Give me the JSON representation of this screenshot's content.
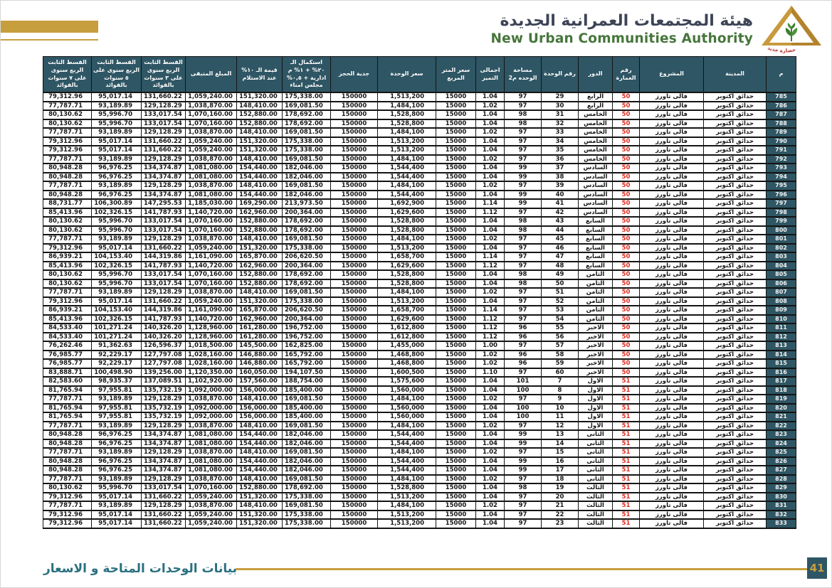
{
  "header": {
    "title_ar": "هيئة المجتمعات العمرانية الجديدة",
    "title_en": "New Urban Communities Authority",
    "logo": "nuca-gold-pyramid-logo"
  },
  "footer": {
    "label": "بيانات الوحدات المتاحة و الاسعار",
    "page_number": "41"
  },
  "colors": {
    "header_teal": "#2f5664",
    "gold": "#c79e3e",
    "building_red": "#e02b20",
    "footer_teal": "#2a7080",
    "title_green": "#46763b"
  },
  "table": {
    "columns": [
      "م",
      "المدينة",
      "المشروع",
      "رقم العمارة",
      "الدور",
      "رقم الوحدة",
      "مساحة الوحده م2",
      "اجمالى التميز",
      "سعر المتر المربع",
      "سعر الوحدة",
      "جدية الحجز",
      "استكمال الـ ٢٠% + ١% م ادارية + ٠,٥% مجلس امناء",
      "قيمة الـ ١٠% عند الاستلام",
      "المبلغ المتبقى",
      "القسط الثابت الربع سنوى على ٣ سنوات بالفوائد",
      "القسط الثابت الربع سنوى على ٥ سنوات بالفوائد",
      "القسط الثابت الربع سنوى على ٧ سنوات بالفوائد"
    ],
    "column_keys": [
      "serial",
      "city",
      "project",
      "building-number",
      "floor",
      "unit-number",
      "unit-area",
      "premium-factor",
      "meter-price",
      "unit-price",
      "booking-deposit",
      "completion-20pct-payment",
      "delivery-10pct-payment",
      "remaining-amount",
      "installment-3years",
      "installment-5years",
      "installment-7years"
    ],
    "rows": [
      [
        "785",
        "حدائق اكتوبر",
        "فالى تاورز",
        "50",
        "الرابع",
        "29",
        "97",
        "1.04",
        "15000",
        "1,513,200",
        "150000",
        "175,338.00",
        "151,320.00",
        "1,059,240.00",
        "131,660.22",
        "95,017.14",
        "79,312.96"
      ],
      [
        "786",
        "حدائق اكتوبر",
        "فالى تاورز",
        "50",
        "الرابع",
        "30",
        "97",
        "1.02",
        "15000",
        "1,484,100",
        "150000",
        "169,081.50",
        "148,410.00",
        "1,038,870.00",
        "129,128.29",
        "93,189.89",
        "77,787.71"
      ],
      [
        "787",
        "حدائق اكتوبر",
        "فالى تاورز",
        "50",
        "الخامس",
        "31",
        "98",
        "1.04",
        "15000",
        "1,528,800",
        "150000",
        "178,692.00",
        "152,880.00",
        "1,070,160.00",
        "133,017.54",
        "95,996.70",
        "80,130.62"
      ],
      [
        "788",
        "حدائق اكتوبر",
        "فالى تاورز",
        "50",
        "الخامس",
        "32",
        "98",
        "1.04",
        "15000",
        "1,528,800",
        "150000",
        "178,692.00",
        "152,880.00",
        "1,070,160.00",
        "133,017.54",
        "95,996.70",
        "80,130.62"
      ],
      [
        "789",
        "حدائق اكتوبر",
        "فالى تاورز",
        "50",
        "الخامس",
        "33",
        "97",
        "1.02",
        "15000",
        "1,484,100",
        "150000",
        "169,081.50",
        "148,410.00",
        "1,038,870.00",
        "129,128.29",
        "93,189.89",
        "77,787.71"
      ],
      [
        "790",
        "حدائق اكتوبر",
        "فالى تاورز",
        "50",
        "الخامس",
        "34",
        "97",
        "1.04",
        "15000",
        "1,513,200",
        "150000",
        "175,338.00",
        "151,320.00",
        "1,059,240.00",
        "131,660.22",
        "95,017.14",
        "79,312.96"
      ],
      [
        "791",
        "حدائق اكتوبر",
        "فالى تاورز",
        "50",
        "الخامس",
        "35",
        "97",
        "1.04",
        "15000",
        "1,513,200",
        "150000",
        "175,338.00",
        "151,320.00",
        "1,059,240.00",
        "131,660.22",
        "95,017.14",
        "79,312.96"
      ],
      [
        "792",
        "حدائق اكتوبر",
        "فالى تاورز",
        "50",
        "الخامس",
        "36",
        "97",
        "1.02",
        "15000",
        "1,484,100",
        "150000",
        "169,081.50",
        "148,410.00",
        "1,038,870.00",
        "129,128.29",
        "93,189.89",
        "77,787.71"
      ],
      [
        "793",
        "حدائق اكتوبر",
        "فالى تاورز",
        "50",
        "السادس",
        "37",
        "99",
        "1.04",
        "15000",
        "1,544,400",
        "150000",
        "182,046.00",
        "154,440.00",
        "1,081,080.00",
        "134,374.87",
        "96,976.25",
        "80,948.28"
      ],
      [
        "794",
        "حدائق اكتوبر",
        "فالى تاورز",
        "50",
        "السادس",
        "38",
        "99",
        "1.04",
        "15000",
        "1,544,400",
        "150000",
        "182,046.00",
        "154,440.00",
        "1,081,080.00",
        "134,374.87",
        "96,976.25",
        "80,948.28"
      ],
      [
        "795",
        "حدائق اكتوبر",
        "فالى تاورز",
        "50",
        "السادس",
        "39",
        "97",
        "1.02",
        "15000",
        "1,484,100",
        "150000",
        "169,081.50",
        "148,410.00",
        "1,038,870.00",
        "129,128.29",
        "93,189.89",
        "77,787.71"
      ],
      [
        "796",
        "حدائق اكتوبر",
        "فالى تاورز",
        "50",
        "السادس",
        "40",
        "99",
        "1.04",
        "15000",
        "1,544,400",
        "150000",
        "182,046.00",
        "154,440.00",
        "1,081,080.00",
        "134,374.87",
        "96,976.25",
        "80,948.28"
      ],
      [
        "797",
        "حدائق اكتوبر",
        "فالى تاورز",
        "50",
        "السادس",
        "41",
        "99",
        "1.14",
        "15000",
        "1,692,900",
        "150000",
        "213,973.50",
        "169,290.00",
        "1,185,030.00",
        "147,295.53",
        "106,300.89",
        "88,731.77"
      ],
      [
        "798",
        "حدائق اكتوبر",
        "فالى تاورز",
        "50",
        "السادس",
        "42",
        "97",
        "1.12",
        "15000",
        "1,629,600",
        "150000",
        "200,364.00",
        "162,960.00",
        "1,140,720.00",
        "141,787.93",
        "102,326.15",
        "85,413.96"
      ],
      [
        "799",
        "حدائق اكتوبر",
        "فالى تاورز",
        "50",
        "السابع",
        "43",
        "98",
        "1.04",
        "15000",
        "1,528,800",
        "150000",
        "178,692.00",
        "152,880.00",
        "1,070,160.00",
        "133,017.54",
        "95,996.70",
        "80,130.62"
      ],
      [
        "800",
        "حدائق اكتوبر",
        "فالى تاورز",
        "50",
        "السابع",
        "44",
        "98",
        "1.04",
        "15000",
        "1,528,800",
        "150000",
        "178,692.00",
        "152,880.00",
        "1,070,160.00",
        "133,017.54",
        "95,996.70",
        "80,130.62"
      ],
      [
        "801",
        "حدائق اكتوبر",
        "فالى تاورز",
        "50",
        "السابع",
        "45",
        "97",
        "1.02",
        "15000",
        "1,484,100",
        "150000",
        "169,081.50",
        "148,410.00",
        "1,038,870.00",
        "129,128.29",
        "93,189.89",
        "77,787.71"
      ],
      [
        "802",
        "حدائق اكتوبر",
        "فالى تاورز",
        "50",
        "السابع",
        "46",
        "97",
        "1.04",
        "15000",
        "1,513,200",
        "150000",
        "175,338.00",
        "151,320.00",
        "1,059,240.00",
        "131,660.22",
        "95,017.14",
        "79,312.96"
      ],
      [
        "803",
        "حدائق اكتوبر",
        "فالى تاورز",
        "50",
        "السابع",
        "47",
        "97",
        "1.14",
        "15000",
        "1,658,700",
        "150000",
        "206,620.50",
        "165,870.00",
        "1,161,090.00",
        "144,319.86",
        "104,153.40",
        "86,939.21"
      ],
      [
        "804",
        "حدائق اكتوبر",
        "فالى تاورز",
        "50",
        "السابع",
        "48",
        "97",
        "1.12",
        "15000",
        "1,629,600",
        "150000",
        "200,364.00",
        "162,960.00",
        "1,140,720.00",
        "141,787.93",
        "102,326.15",
        "85,413.96"
      ],
      [
        "805",
        "حدائق اكتوبر",
        "فالى تاورز",
        "50",
        "الثامن",
        "49",
        "98",
        "1.04",
        "15000",
        "1,528,800",
        "150000",
        "178,692.00",
        "152,880.00",
        "1,070,160.00",
        "133,017.54",
        "95,996.70",
        "80,130.62"
      ],
      [
        "806",
        "حدائق اكتوبر",
        "فالى تاورز",
        "50",
        "الثامن",
        "50",
        "98",
        "1.04",
        "15000",
        "1,528,800",
        "150000",
        "178,692.00",
        "152,880.00",
        "1,070,160.00",
        "133,017.54",
        "95,996.70",
        "80,130.62"
      ],
      [
        "807",
        "حدائق اكتوبر",
        "فالى تاورز",
        "50",
        "الثامن",
        "51",
        "97",
        "1.02",
        "15000",
        "1,484,100",
        "150000",
        "169,081.50",
        "148,410.00",
        "1,038,870.00",
        "129,128.29",
        "93,189.89",
        "77,787.71"
      ],
      [
        "808",
        "حدائق اكتوبر",
        "فالى تاورز",
        "50",
        "الثامن",
        "52",
        "97",
        "1.04",
        "15000",
        "1,513,200",
        "150000",
        "175,338.00",
        "151,320.00",
        "1,059,240.00",
        "131,660.22",
        "95,017.14",
        "79,312.96"
      ],
      [
        "809",
        "حدائق اكتوبر",
        "فالى تاورز",
        "50",
        "الثامن",
        "53",
        "97",
        "1.14",
        "15000",
        "1,658,700",
        "150000",
        "206,620.50",
        "165,870.00",
        "1,161,090.00",
        "144,319.86",
        "104,153.40",
        "86,939.21"
      ],
      [
        "810",
        "حدائق اكتوبر",
        "فالى تاورز",
        "50",
        "الثامن",
        "54",
        "97",
        "1.12",
        "15000",
        "1,629,600",
        "150000",
        "200,364.00",
        "162,960.00",
        "1,140,720.00",
        "141,787.93",
        "102,326.15",
        "85,413.96"
      ],
      [
        "811",
        "حدائق اكتوبر",
        "فالى تاورز",
        "50",
        "الاخير",
        "55",
        "96",
        "1.12",
        "15000",
        "1,612,800",
        "150000",
        "196,752.00",
        "161,280.00",
        "1,128,960.00",
        "140,326.20",
        "101,271.24",
        "84,533.40"
      ],
      [
        "812",
        "حدائق اكتوبر",
        "فالى تاورز",
        "50",
        "الاخير",
        "56",
        "96",
        "1.12",
        "15000",
        "1,612,800",
        "150000",
        "196,752.00",
        "161,280.00",
        "1,128,960.00",
        "140,326.20",
        "101,271.24",
        "84,533.40"
      ],
      [
        "813",
        "حدائق اكتوبر",
        "فالى تاورز",
        "50",
        "الاخير",
        "57",
        "97",
        "1.00",
        "15000",
        "1,455,000",
        "150000",
        "162,825.00",
        "145,500.00",
        "1,018,500.00",
        "126,596.37",
        "91,362.63",
        "76,262.46"
      ],
      [
        "814",
        "حدائق اكتوبر",
        "فالى تاورز",
        "50",
        "الاخير",
        "58",
        "96",
        "1.02",
        "15000",
        "1,468,800",
        "150000",
        "165,792.00",
        "146,880.00",
        "1,028,160.00",
        "127,797.08",
        "92,229.17",
        "76,985.77"
      ],
      [
        "815",
        "حدائق اكتوبر",
        "فالى تاورز",
        "50",
        "الاخير",
        "59",
        "96",
        "1.02",
        "15000",
        "1,468,800",
        "150000",
        "165,792.00",
        "146,880.00",
        "1,028,160.00",
        "127,797.08",
        "92,229.17",
        "76,985.77"
      ],
      [
        "816",
        "حدائق اكتوبر",
        "فالى تاورز",
        "50",
        "الاخير",
        "60",
        "97",
        "1.10",
        "15000",
        "1,600,500",
        "150000",
        "194,107.50",
        "160,050.00",
        "1,120,350.00",
        "139,256.00",
        "100,498.90",
        "83,888.71"
      ],
      [
        "817",
        "حدائق اكتوبر",
        "فالى تاورز",
        "51",
        "الاول",
        "7",
        "101",
        "1.04",
        "15000",
        "1,575,600",
        "150000",
        "188,754.00",
        "157,560.00",
        "1,102,920.00",
        "137,089.51",
        "98,935.37",
        "82,583.60"
      ],
      [
        "818",
        "حدائق اكتوبر",
        "فالى تاورز",
        "51",
        "الاول",
        "8",
        "100",
        "1.04",
        "15000",
        "1,560,000",
        "150000",
        "185,400.00",
        "156,000.00",
        "1,092,000.00",
        "135,732.19",
        "97,955.81",
        "81,765.94"
      ],
      [
        "819",
        "حدائق اكتوبر",
        "فالى تاورز",
        "51",
        "الاول",
        "9",
        "97",
        "1.02",
        "15000",
        "1,484,100",
        "150000",
        "169,081.50",
        "148,410.00",
        "1,038,870.00",
        "129,128.29",
        "93,189.89",
        "77,787.71"
      ],
      [
        "820",
        "حدائق اكتوبر",
        "فالى تاورز",
        "51",
        "الاول",
        "10",
        "100",
        "1.04",
        "15000",
        "1,560,000",
        "150000",
        "185,400.00",
        "156,000.00",
        "1,092,000.00",
        "135,732.19",
        "97,955.81",
        "81,765.94"
      ],
      [
        "821",
        "حدائق اكتوبر",
        "فالى تاورز",
        "51",
        "الاول",
        "11",
        "100",
        "1.04",
        "15000",
        "1,560,000",
        "150000",
        "185,400.00",
        "156,000.00",
        "1,092,000.00",
        "135,732.19",
        "97,955.81",
        "81,765.94"
      ],
      [
        "822",
        "حدائق اكتوبر",
        "فالى تاورز",
        "51",
        "الاول",
        "12",
        "97",
        "1.02",
        "15000",
        "1,484,100",
        "150000",
        "169,081.50",
        "148,410.00",
        "1,038,870.00",
        "129,128.29",
        "93,189.89",
        "77,787.71"
      ],
      [
        "823",
        "حدائق اكتوبر",
        "فالى تاورز",
        "51",
        "الثانى",
        "13",
        "99",
        "1.04",
        "15000",
        "1,544,400",
        "150000",
        "182,046.00",
        "154,440.00",
        "1,081,080.00",
        "134,374.87",
        "96,976.25",
        "80,948.28"
      ],
      [
        "824",
        "حدائق اكتوبر",
        "فالى تاورز",
        "51",
        "الثانى",
        "14",
        "99",
        "1.04",
        "15000",
        "1,544,400",
        "150000",
        "182,046.00",
        "154,440.00",
        "1,081,080.00",
        "134,374.87",
        "96,976.25",
        "80,948.28"
      ],
      [
        "825",
        "حدائق اكتوبر",
        "فالى تاورز",
        "51",
        "الثانى",
        "15",
        "97",
        "1.02",
        "15000",
        "1,484,100",
        "150000",
        "169,081.50",
        "148,410.00",
        "1,038,870.00",
        "129,128.29",
        "93,189.89",
        "77,787.71"
      ],
      [
        "826",
        "حدائق اكتوبر",
        "فالى تاورز",
        "51",
        "الثانى",
        "16",
        "99",
        "1.04",
        "15000",
        "1,544,400",
        "150000",
        "182,046.00",
        "154,440.00",
        "1,081,080.00",
        "134,374.87",
        "96,976.25",
        "80,948.28"
      ],
      [
        "827",
        "حدائق اكتوبر",
        "فالى تاورز",
        "51",
        "الثانى",
        "17",
        "99",
        "1.04",
        "15000",
        "1,544,400",
        "150000",
        "182,046.00",
        "154,440.00",
        "1,081,080.00",
        "134,374.87",
        "96,976.25",
        "80,948.28"
      ],
      [
        "828",
        "حدائق اكتوبر",
        "فالى تاورز",
        "51",
        "الثانى",
        "18",
        "97",
        "1.02",
        "15000",
        "1,484,100",
        "150000",
        "169,081.50",
        "148,410.00",
        "1,038,870.00",
        "129,128.29",
        "93,189.89",
        "77,787.71"
      ],
      [
        "829",
        "حدائق اكتوبر",
        "فالى تاورز",
        "51",
        "الثالث",
        "19",
        "98",
        "1.04",
        "15000",
        "1,528,800",
        "150000",
        "178,692.00",
        "152,880.00",
        "1,070,160.00",
        "133,017.54",
        "95,996.70",
        "80,130.62"
      ],
      [
        "830",
        "حدائق اكتوبر",
        "فالى تاورز",
        "51",
        "الثالث",
        "20",
        "97",
        "1.04",
        "15000",
        "1,513,200",
        "150000",
        "175,338.00",
        "151,320.00",
        "1,059,240.00",
        "131,660.22",
        "95,017.14",
        "79,312.96"
      ],
      [
        "831",
        "حدائق اكتوبر",
        "فالى تاورز",
        "51",
        "الثالث",
        "21",
        "97",
        "1.02",
        "15000",
        "1,484,100",
        "150000",
        "169,081.50",
        "148,410.00",
        "1,038,870.00",
        "129,128.29",
        "93,189.89",
        "77,787.71"
      ],
      [
        "832",
        "حدائق اكتوبر",
        "فالى تاورز",
        "51",
        "الثالث",
        "22",
        "97",
        "1.04",
        "15000",
        "1,513,200",
        "150000",
        "175,338.00",
        "151,320.00",
        "1,059,240.00",
        "131,660.22",
        "95,017.14",
        "79,312.96"
      ],
      [
        "833",
        "حدائق اكتوبر",
        "فالى تاورز",
        "51",
        "الثالث",
        "23",
        "97",
        "1.04",
        "15000",
        "1,513,200",
        "150000",
        "175,338.00",
        "151,320.00",
        "1,059,240.00",
        "131,660.22",
        "95,017.14",
        "79,312.96"
      ]
    ]
  }
}
